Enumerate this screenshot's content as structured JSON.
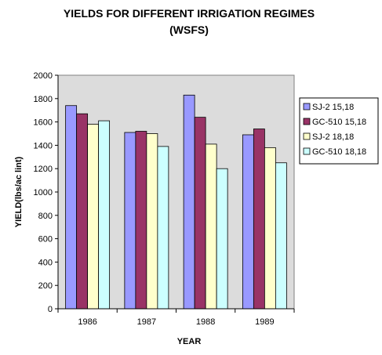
{
  "chart_data": {
    "type": "bar",
    "title": "YIELDS FOR DIFFERENT IRRIGATION REGIMES",
    "subtitle": "(WSFS)",
    "xlabel": "YEAR",
    "ylabel": "YIELD(lbs/ac lint)",
    "categories": [
      "1986",
      "1987",
      "1988",
      "1989"
    ],
    "ylim": [
      0,
      2000
    ],
    "yticks": [
      0,
      200,
      400,
      600,
      800,
      1000,
      1200,
      1400,
      1600,
      1800,
      2000
    ],
    "grid": false,
    "plot_background": "#dcdcdc",
    "legend_position": "right",
    "series": [
      {
        "name": "SJ-2 15,18",
        "color": "#9999ff",
        "values": [
          1740,
          1510,
          1830,
          1490
        ]
      },
      {
        "name": "GC-510 15,18",
        "color": "#993366",
        "values": [
          1670,
          1520,
          1640,
          1540
        ]
      },
      {
        "name": "SJ-2 18,18",
        "color": "#ffffcc",
        "values": [
          1580,
          1500,
          1410,
          1380
        ]
      },
      {
        "name": "GC-510 18,18",
        "color": "#ccffff",
        "values": [
          1610,
          1390,
          1200,
          1250
        ]
      }
    ]
  }
}
